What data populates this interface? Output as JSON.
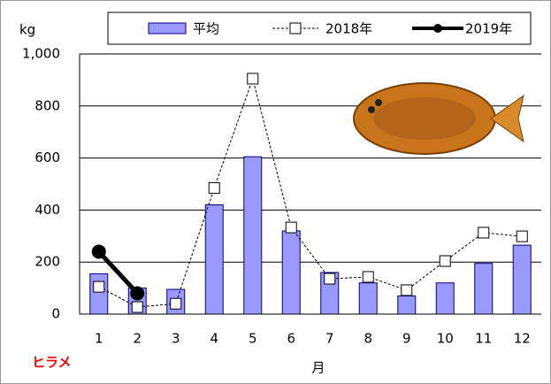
{
  "chart_data": {
    "type": "bar",
    "y_label": "kg",
    "x_label": "月",
    "species": "ヒラメ",
    "categories": [
      "1",
      "2",
      "3",
      "4",
      "5",
      "6",
      "7",
      "8",
      "9",
      "10",
      "11",
      "12"
    ],
    "series": [
      {
        "name": "平均",
        "type": "bar",
        "color": "#9999ff",
        "values": [
          155,
          100,
          95,
          420,
          605,
          320,
          160,
          120,
          70,
          120,
          195,
          265
        ]
      },
      {
        "name": "2018年",
        "type": "line",
        "color": "#000000",
        "values": [
          105,
          27,
          40,
          485,
          905,
          333,
          136,
          143,
          92,
          204,
          313,
          299
        ]
      },
      {
        "name": "2019年",
        "type": "line",
        "color": "#000000",
        "values": [
          240,
          80,
          null,
          null,
          null,
          null,
          null,
          null,
          null,
          null,
          null,
          null
        ]
      }
    ],
    "ylim": [
      0,
      1000
    ],
    "yticks": [
      0,
      200,
      400,
      600,
      800,
      {
        "value": 1000,
        "label": "1,000"
      }
    ],
    "grid": true
  }
}
